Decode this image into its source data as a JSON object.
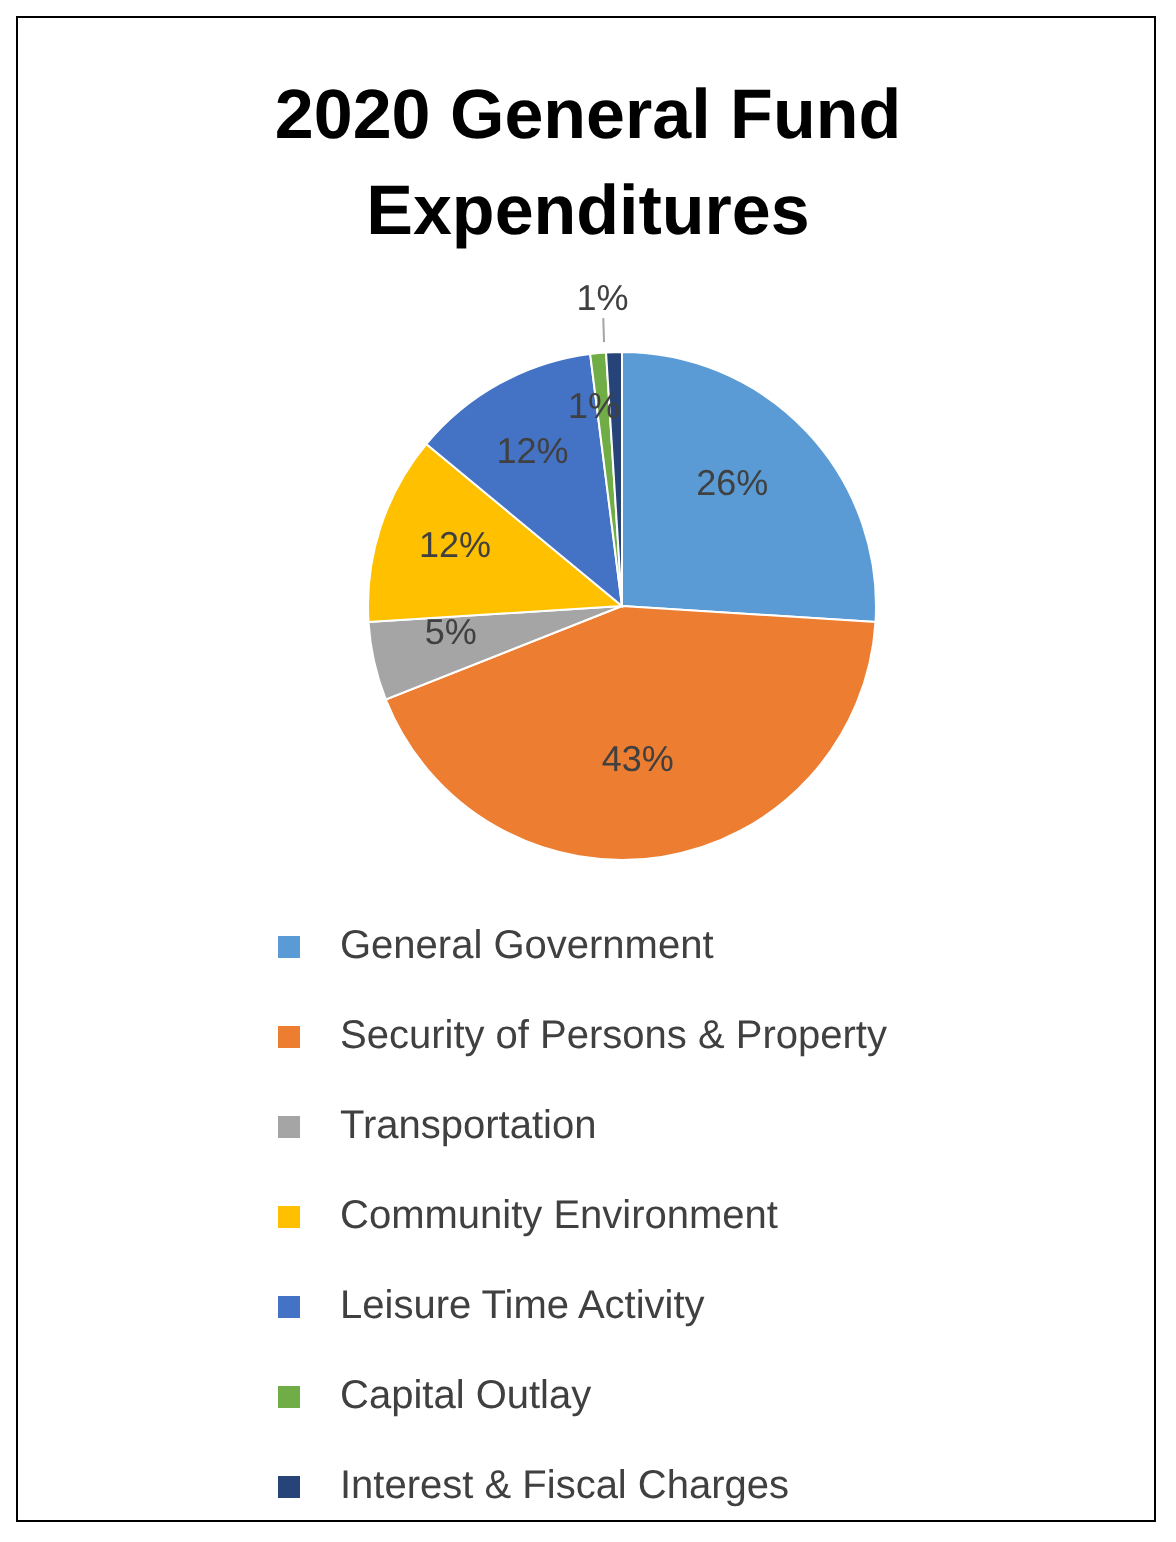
{
  "chart_data": {
    "type": "pie",
    "title": "2020 General Fund Expenditures",
    "categories": [
      "General Government",
      "Security of Persons & Property",
      "Transportation",
      "Community Environment",
      "Leisure Time Activity",
      "Capital Outlay",
      "Interest & Fiscal Charges"
    ],
    "values": [
      26,
      43,
      5,
      12,
      12,
      1,
      1
    ],
    "colors": [
      "#5b9bd5",
      "#ed7d31",
      "#a5a5a5",
      "#ffc000",
      "#4472c4",
      "#70ad47",
      "#264478"
    ],
    "value_labels": [
      "26%",
      "43%",
      "5%",
      "12%",
      "12%",
      "1%",
      "1%"
    ],
    "legend": "bottom"
  }
}
